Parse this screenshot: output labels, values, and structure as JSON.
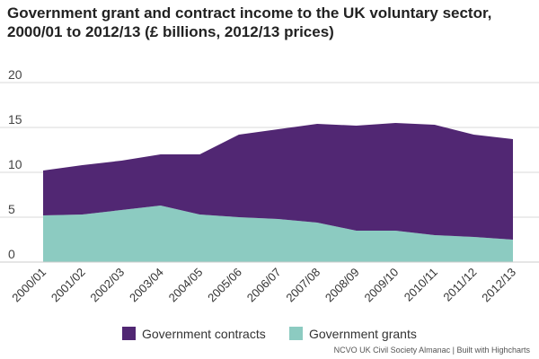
{
  "chart_data": {
    "type": "area",
    "stacked": true,
    "title": "Government grant and contract income to the UK voluntary sector, 2000/01 to 2012/13 (£ billions, 2012/13 prices)",
    "xlabel": "",
    "ylabel": "",
    "categories": [
      "2000/01",
      "2001/02",
      "2002/03",
      "2003/04",
      "2004/05",
      "2005/06",
      "2006/07",
      "2007/08",
      "2008/09",
      "2009/10",
      "2010/11",
      "2011/12",
      "2012/13"
    ],
    "ylim": [
      0,
      20
    ],
    "yticks": [
      0,
      5,
      10,
      15,
      20
    ],
    "grid": true,
    "legend": "bottom",
    "series": [
      {
        "name": "Government grants",
        "color": "#8ccbc1",
        "values": [
          5.2,
          5.3,
          5.8,
          6.3,
          5.3,
          5.0,
          4.8,
          4.4,
          3.5,
          3.5,
          3.0,
          2.8,
          2.5
        ]
      },
      {
        "name": "Government contracts",
        "color": "#512773",
        "values": [
          5.0,
          5.5,
          5.5,
          5.7,
          6.7,
          9.2,
          10.0,
          11.0,
          11.7,
          12.0,
          12.3,
          11.4,
          11.2
        ]
      }
    ]
  },
  "legend_items": [
    {
      "label": "Government contracts",
      "color": "#512773"
    },
    {
      "label": "Government grants",
      "color": "#8ccbc1"
    }
  ],
  "credit": "NCVO UK Civil Society Almanac | Built with Highcharts"
}
